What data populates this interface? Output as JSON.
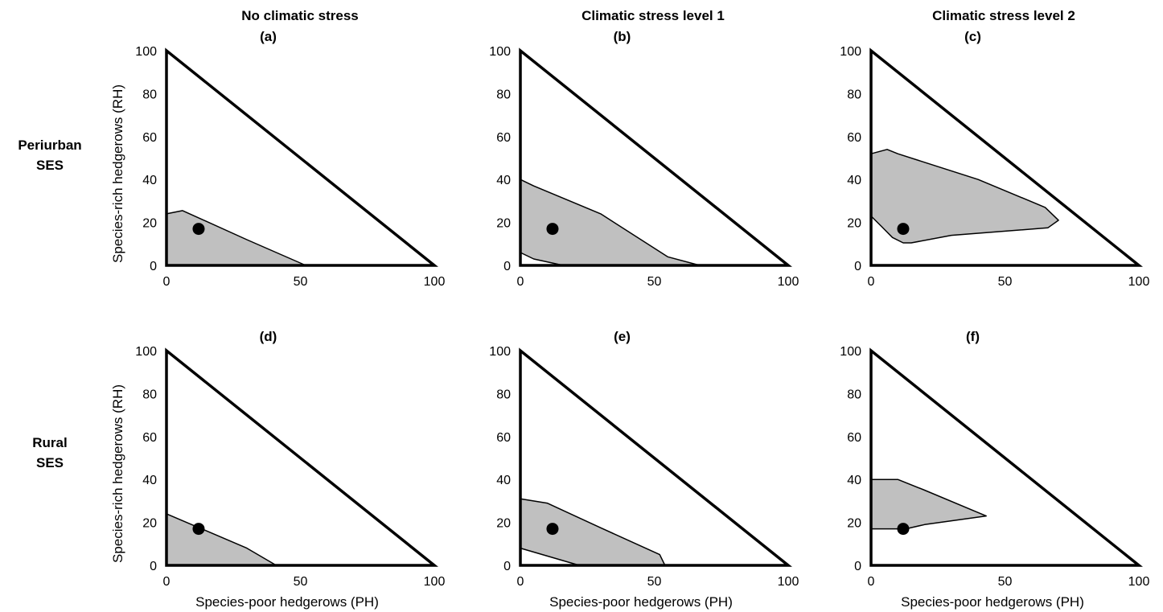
{
  "column_titles": [
    "No climatic stress",
    "Climatic stress level 1",
    "Climatic stress level 2"
  ],
  "row_labels": [
    [
      "Periurban",
      "SES"
    ],
    [
      "Rural",
      "SES"
    ]
  ],
  "axes": {
    "xlabel": "Species-poor hedgerows (PH)",
    "ylabel": "Species-rich hedgerows (RH)",
    "xticks": [
      "0",
      "50",
      "100"
    ],
    "yticks": [
      "0",
      "20",
      "40",
      "60",
      "80",
      "100"
    ]
  },
  "colors": {
    "region_fill": "#c0c0c0",
    "line": "#000000",
    "point": "#000000"
  },
  "chart_data": [
    {
      "type": "area",
      "label": "(a)",
      "row": 0,
      "col": 0,
      "xlim": [
        0,
        100
      ],
      "ylim": [
        0,
        100
      ],
      "region": [
        [
          0,
          0
        ],
        [
          0,
          24
        ],
        [
          6,
          25.5
        ],
        [
          30,
          12
        ],
        [
          52,
          0
        ]
      ],
      "point": [
        12,
        17
      ]
    },
    {
      "type": "area",
      "label": "(b)",
      "row": 0,
      "col": 1,
      "xlim": [
        0,
        100
      ],
      "ylim": [
        0,
        100
      ],
      "region": [
        [
          0,
          0
        ],
        [
          0,
          40
        ],
        [
          5,
          37
        ],
        [
          30,
          24
        ],
        [
          55,
          4
        ],
        [
          67,
          0
        ],
        [
          16,
          0
        ],
        [
          5,
          3
        ],
        [
          0,
          6
        ]
      ],
      "point": [
        12,
        17
      ]
    },
    {
      "type": "area",
      "label": "(c)",
      "row": 0,
      "col": 2,
      "xlim": [
        0,
        100
      ],
      "ylim": [
        0,
        100
      ],
      "region": [
        [
          0,
          52
        ],
        [
          6,
          54
        ],
        [
          10,
          52
        ],
        [
          40,
          40
        ],
        [
          65,
          27
        ],
        [
          70,
          21
        ],
        [
          66,
          17.5
        ],
        [
          30,
          14
        ],
        [
          15,
          10.5
        ],
        [
          12,
          10.5
        ],
        [
          8,
          13
        ],
        [
          4,
          18
        ],
        [
          0,
          23
        ]
      ],
      "point": [
        12,
        17
      ]
    },
    {
      "type": "area",
      "label": "(d)",
      "row": 1,
      "col": 0,
      "xlim": [
        0,
        100
      ],
      "ylim": [
        0,
        100
      ],
      "region": [
        [
          0,
          0
        ],
        [
          0,
          24
        ],
        [
          30,
          8
        ],
        [
          41,
          0
        ]
      ],
      "point": [
        12,
        17
      ]
    },
    {
      "type": "area",
      "label": "(e)",
      "row": 1,
      "col": 1,
      "xlim": [
        0,
        100
      ],
      "ylim": [
        0,
        100
      ],
      "region": [
        [
          0,
          0
        ],
        [
          0,
          31
        ],
        [
          10,
          29
        ],
        [
          30,
          17.5
        ],
        [
          52,
          5
        ],
        [
          54,
          0
        ],
        [
          22,
          0
        ],
        [
          0,
          8
        ]
      ],
      "point": [
        12,
        17
      ]
    },
    {
      "type": "area",
      "label": "(f)",
      "row": 1,
      "col": 2,
      "xlim": [
        0,
        100
      ],
      "ylim": [
        0,
        100
      ],
      "region": [
        [
          0,
          40
        ],
        [
          10,
          40
        ],
        [
          20,
          35
        ],
        [
          43,
          23
        ],
        [
          20,
          19
        ],
        [
          13,
          17
        ],
        [
          0,
          17
        ]
      ],
      "point": [
        12,
        17
      ]
    }
  ]
}
